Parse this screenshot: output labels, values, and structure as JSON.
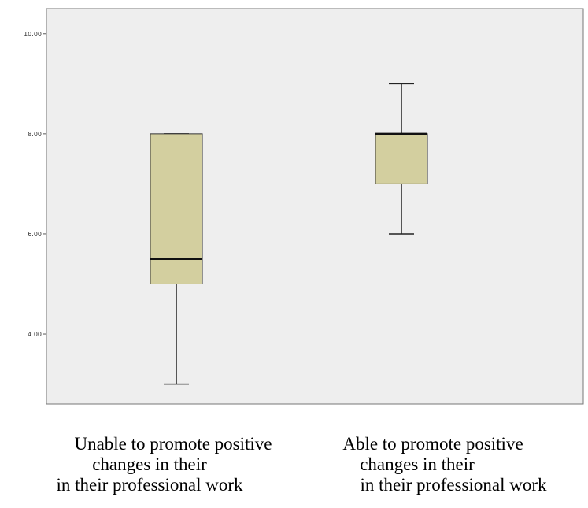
{
  "chart_data": {
    "type": "boxplot",
    "y_ticks": [
      4,
      6,
      8,
      10
    ],
    "y_tick_labels": [
      "4.00",
      "6.00",
      "8.00",
      "10.00"
    ],
    "ylim": [
      2.6,
      10.5
    ],
    "grid": false,
    "categories": [
      [
        "Unable to promote positive",
        "changes in their",
        "in their professional work"
      ],
      [
        "Able to promote positive",
        "changes in their",
        "in their professional work"
      ]
    ],
    "boxes": [
      {
        "min": 3,
        "q1": 5,
        "median": 5.5,
        "q3": 8,
        "max": 8
      },
      {
        "min": 6,
        "q1": 7,
        "median": 8,
        "q3": 8,
        "max": 9
      }
    ],
    "box_color": "#d3cf9f",
    "plot_background": "#eeeeee"
  }
}
